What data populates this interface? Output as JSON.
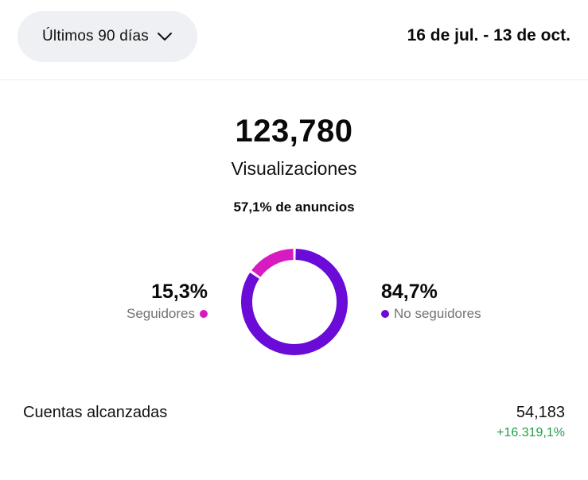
{
  "header": {
    "range_label": "Últimos 90 días",
    "date_range": "16 de jul. - 13 de oct."
  },
  "summary": {
    "total": "123,780",
    "label": "Visualizaciones",
    "ads_note": "57,1% de anuncios"
  },
  "breakdown": {
    "followers": {
      "percent": 15.3,
      "percent_text": "15,3%",
      "label": "Seguidores",
      "color": "#d81bc0"
    },
    "non_followers": {
      "percent": 84.7,
      "percent_text": "84,7%",
      "label": "No seguidores",
      "color": "#6a0bd8"
    }
  },
  "reach": {
    "label": "Cuentas alcanzadas",
    "value": "54,183",
    "delta": "+16.319,1%",
    "delta_color": "#1f9e4a"
  },
  "icons": {
    "range_chevron": "chevron-down-icon"
  }
}
